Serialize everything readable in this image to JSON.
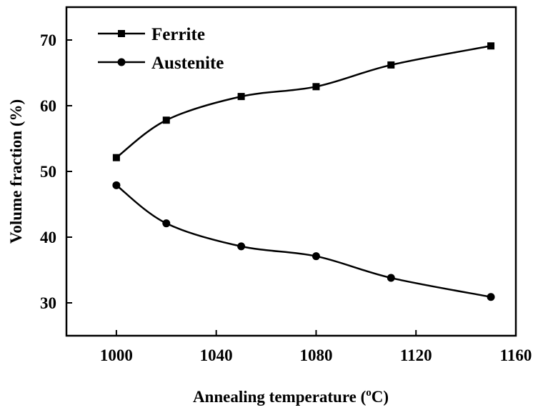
{
  "chart_data": {
    "type": "line",
    "xlabel": "Annealing temperature (",
    "xlabel_sup": "o",
    "xlabel_unit": "C)",
    "ylabel": "Volume fraction (%)",
    "xlim": [
      980,
      1160
    ],
    "ylim": [
      25,
      75
    ],
    "xticks": [
      1000,
      1040,
      1080,
      1120,
      1160
    ],
    "yticks": [
      30,
      40,
      50,
      60,
      70
    ],
    "legend_position": "top-left",
    "series": [
      {
        "name": "Ferrite",
        "marker": "square",
        "x": [
          1000,
          1020,
          1050,
          1080,
          1110,
          1150
        ],
        "y": [
          52.1,
          57.8,
          61.4,
          62.9,
          66.2,
          69.1
        ]
      },
      {
        "name": "Austenite",
        "marker": "circle",
        "x": [
          1000,
          1020,
          1050,
          1080,
          1110,
          1150
        ],
        "y": [
          47.9,
          42.1,
          38.6,
          37.1,
          33.8,
          30.9
        ]
      }
    ],
    "colors": {
      "line": "#000000",
      "marker": "#000000"
    }
  }
}
